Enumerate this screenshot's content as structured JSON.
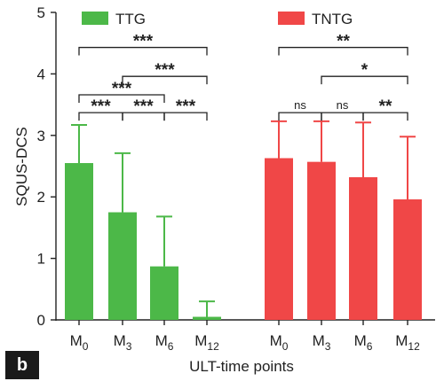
{
  "panel_label": "b",
  "chart_data": {
    "type": "bar",
    "ylabel": "SQUS-DCS",
    "xlabel": "ULT-time points",
    "ylim": [
      0,
      5
    ],
    "yticks": [
      "0",
      "1",
      "2",
      "3",
      "4",
      "5"
    ],
    "grid": false,
    "legend_placement": "top",
    "groups": [
      {
        "name": "TTG",
        "color": "#4cb848",
        "categories": [
          [
            "M",
            "0"
          ],
          [
            "M",
            "3"
          ],
          [
            "M",
            "6"
          ],
          [
            "M",
            "12"
          ]
        ],
        "values": [
          2.55,
          1.75,
          0.87,
          0.05
        ],
        "error_upper": [
          3.17,
          2.71,
          1.68,
          0.3
        ],
        "significance": [
          {
            "from": 0,
            "to": 1,
            "label": "***",
            "y": 3.37
          },
          {
            "from": 1,
            "to": 2,
            "label": "***",
            "y": 3.37
          },
          {
            "from": 2,
            "to": 3,
            "label": "***",
            "y": 3.37
          },
          {
            "from": 0,
            "to": 2,
            "label": "***",
            "y": 3.66
          },
          {
            "from": 1,
            "to": 3,
            "label": "***",
            "y": 3.96
          },
          {
            "from": 0,
            "to": 3,
            "label": "***",
            "y": 4.43
          }
        ]
      },
      {
        "name": "TNTG",
        "color": "#f04747",
        "categories": [
          [
            "M",
            "0"
          ],
          [
            "M",
            "3"
          ],
          [
            "M",
            "6"
          ],
          [
            "M",
            "12"
          ]
        ],
        "values": [
          2.63,
          2.57,
          2.32,
          1.96
        ],
        "error_upper": [
          3.23,
          3.23,
          3.21,
          2.98
        ],
        "significance": [
          {
            "from": 0,
            "to": 1,
            "label": "ns",
            "y": 3.37
          },
          {
            "from": 1,
            "to": 2,
            "label": "ns",
            "y": 3.37
          },
          {
            "from": 2,
            "to": 3,
            "label": "**",
            "y": 3.37
          },
          {
            "from": 1,
            "to": 3,
            "label": "*",
            "y": 3.96
          },
          {
            "from": 0,
            "to": 3,
            "label": "**",
            "y": 4.43
          }
        ]
      }
    ]
  }
}
